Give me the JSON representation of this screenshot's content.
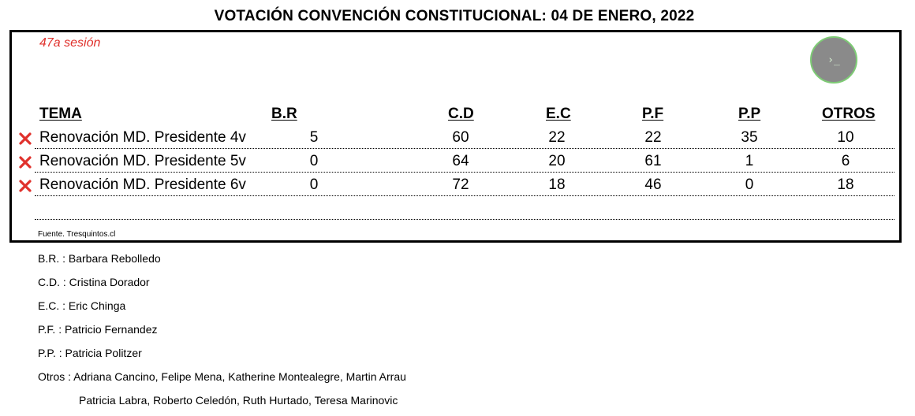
{
  "title": "VOTACIÓN CONVENCIÓN CONSTITUCIONAL: 04 DE ENERO, 2022",
  "session": "47a sesión",
  "terminal_glyph": "›_",
  "headers": [
    "TEMA",
    "B.R",
    "C.D",
    "E.C",
    "P.F",
    "P.P",
    "OTROS"
  ],
  "rows": [
    {
      "status": "rejected",
      "tema": "Renovación MD.  Presidente 4v",
      "br": "5",
      "cd": "60",
      "ec": "22",
      "pf": "22",
      "pp": "35",
      "otros": "10"
    },
    {
      "status": "rejected",
      "tema": "Renovación MD.  Presidente 5v",
      "br": "0",
      "cd": "64",
      "ec": "20",
      "pf": "61",
      "pp": "1",
      "otros": "6"
    },
    {
      "status": "rejected",
      "tema": "Renovación MD.  Presidente 6v",
      "br": "0",
      "cd": "72",
      "ec": "18",
      "pf": "46",
      "pp": "0",
      "otros": "18"
    }
  ],
  "source": "Fuente. Tresquintos.cl",
  "legend": [
    "B.R. : Barbara Rebolledo",
    "C.D. : Cristina Dorador",
    "E.C. : Eric Chinga",
    "P.F. : Patricio Fernandez",
    "P.P. : Patricia Politzer",
    "Otros : Adriana Cancino, Felipe Mena, Katherine Montealegre, Martin Arrau",
    "Patricia Labra, Roberto Celedón, Ruth Hurtado, Teresa Marinovic"
  ],
  "colors": {
    "reject": "#e0312c",
    "accent": "#7ecb75"
  }
}
